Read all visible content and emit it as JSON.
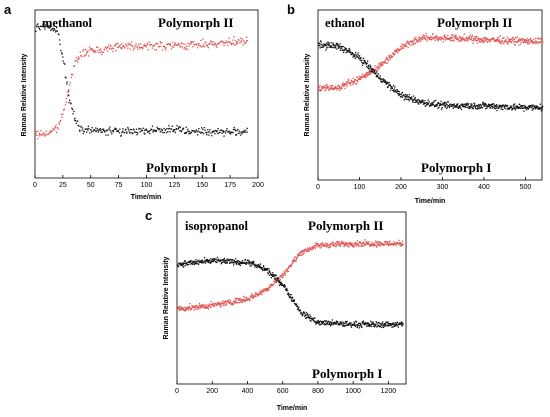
{
  "chart_data": [
    {
      "id": "a",
      "type": "scatter",
      "panel_label": "a",
      "solvent_label": "methanol",
      "upper_label": "Polymorph II",
      "lower_label": "Polymorph I",
      "xlabel": "Time/min",
      "ylabel": "Raman Relative Intensity",
      "xlim": [
        0,
        200
      ],
      "ylim": [
        0,
        1
      ],
      "xticks": [
        "0",
        "25",
        "50",
        "75",
        "100",
        "125",
        "150",
        "175",
        "200"
      ],
      "yticks_shown": false,
      "series": [
        {
          "color": "#e05555",
          "points": [
            [
              0,
              0.26
            ],
            [
              10,
              0.27
            ],
            [
              20,
              0.3
            ],
            [
              25,
              0.4
            ],
            [
              30,
              0.55
            ],
            [
              35,
              0.68
            ],
            [
              40,
              0.74
            ],
            [
              50,
              0.76
            ],
            [
              75,
              0.79
            ],
            [
              100,
              0.79
            ],
            [
              125,
              0.79
            ],
            [
              150,
              0.8
            ],
            [
              175,
              0.81
            ],
            [
              190,
              0.82
            ]
          ]
        },
        {
          "color": "#111111",
          "points": [
            [
              0,
              0.89
            ],
            [
              10,
              0.91
            ],
            [
              20,
              0.87
            ],
            [
              25,
              0.7
            ],
            [
              30,
              0.48
            ],
            [
              35,
              0.36
            ],
            [
              40,
              0.3
            ],
            [
              50,
              0.29
            ],
            [
              75,
              0.28
            ],
            [
              100,
              0.29
            ],
            [
              125,
              0.29
            ],
            [
              150,
              0.28
            ],
            [
              175,
              0.28
            ],
            [
              190,
              0.28
            ]
          ]
        }
      ]
    },
    {
      "id": "b",
      "type": "scatter",
      "panel_label": "b",
      "solvent_label": "ethanol",
      "upper_label": "Polymorph II",
      "lower_label": "Polymorph I",
      "xlabel": "Time/min",
      "ylabel": "Raman Relative Intensity",
      "xlim": [
        0,
        540
      ],
      "ylim": [
        0,
        1
      ],
      "xticks": [
        "0",
        "100",
        "200",
        "300",
        "400",
        "500"
      ],
      "yticks_shown": false,
      "series": [
        {
          "color": "#e05555",
          "points": [
            [
              0,
              0.54
            ],
            [
              50,
              0.55
            ],
            [
              100,
              0.6
            ],
            [
              150,
              0.68
            ],
            [
              200,
              0.79
            ],
            [
              250,
              0.84
            ],
            [
              300,
              0.84
            ],
            [
              400,
              0.83
            ],
            [
              500,
              0.82
            ],
            [
              540,
              0.82
            ]
          ]
        },
        {
          "color": "#111111",
          "points": [
            [
              0,
              0.8
            ],
            [
              50,
              0.79
            ],
            [
              100,
              0.72
            ],
            [
              150,
              0.6
            ],
            [
              200,
              0.5
            ],
            [
              250,
              0.46
            ],
            [
              300,
              0.44
            ],
            [
              400,
              0.44
            ],
            [
              500,
              0.43
            ],
            [
              540,
              0.43
            ]
          ]
        }
      ]
    },
    {
      "id": "c",
      "type": "scatter",
      "panel_label": "c",
      "solvent_label": "isopropanol",
      "upper_label": "Polymorph II",
      "lower_label": "Polymorph I",
      "xlabel": "Time/min",
      "ylabel": "Raman Relative Intensity",
      "xlim": [
        0,
        1300
      ],
      "ylim": [
        0,
        1
      ],
      "xticks": [
        "0",
        "200",
        "400",
        "600",
        "800",
        "1000",
        "1200"
      ],
      "yticks_shown": false,
      "series": [
        {
          "color": "#e05555",
          "points": [
            [
              0,
              0.44
            ],
            [
              200,
              0.46
            ],
            [
              400,
              0.5
            ],
            [
              500,
              0.55
            ],
            [
              600,
              0.64
            ],
            [
              700,
              0.77
            ],
            [
              800,
              0.81
            ],
            [
              1000,
              0.82
            ],
            [
              1200,
              0.82
            ],
            [
              1280,
              0.82
            ]
          ]
        },
        {
          "color": "#111111",
          "points": [
            [
              0,
              0.7
            ],
            [
              200,
              0.72
            ],
            [
              400,
              0.71
            ],
            [
              500,
              0.67
            ],
            [
              600,
              0.58
            ],
            [
              700,
              0.42
            ],
            [
              800,
              0.36
            ],
            [
              1000,
              0.35
            ],
            [
              1200,
              0.35
            ],
            [
              1280,
              0.35
            ]
          ]
        }
      ]
    }
  ]
}
